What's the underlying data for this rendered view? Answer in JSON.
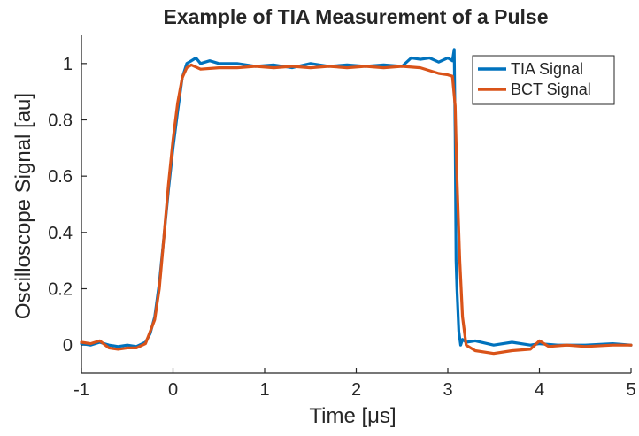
{
  "chart_data": {
    "type": "line",
    "title": "Example of TIA Measurement of a Pulse",
    "xlabel": "Time  [μs]",
    "ylabel": "Oscilloscope Signal [au]",
    "xlim": [
      -1,
      5
    ],
    "ylim": [
      -0.1,
      1.1
    ],
    "x_ticks": [
      "-1",
      "0",
      "1",
      "2",
      "3",
      "4",
      "5"
    ],
    "y_ticks": [
      "0",
      "0.2",
      "0.4",
      "0.6",
      "0.8",
      "1"
    ],
    "grid": false,
    "legend_position": "top-right",
    "series": [
      {
        "name": "TIA Signal",
        "color": "#0072bd",
        "x": [
          -1.0,
          -0.9,
          -0.8,
          -0.7,
          -0.6,
          -0.5,
          -0.4,
          -0.3,
          -0.25,
          -0.2,
          -0.15,
          -0.1,
          -0.05,
          0.0,
          0.05,
          0.1,
          0.15,
          0.2,
          0.25,
          0.3,
          0.4,
          0.5,
          0.7,
          0.9,
          1.1,
          1.3,
          1.5,
          1.7,
          1.9,
          2.1,
          2.3,
          2.5,
          2.6,
          2.7,
          2.8,
          2.9,
          3.0,
          3.05,
          3.07,
          3.08,
          3.09,
          3.1,
          3.12,
          3.14,
          3.16,
          3.2,
          3.3,
          3.5,
          3.7,
          3.9,
          4.0,
          4.2,
          4.5,
          4.8,
          5.0
        ],
        "y": [
          0.005,
          0.0,
          0.01,
          0.0,
          -0.005,
          0.0,
          -0.005,
          0.01,
          0.04,
          0.1,
          0.22,
          0.38,
          0.55,
          0.7,
          0.83,
          0.95,
          1.0,
          1.01,
          1.02,
          1.0,
          1.01,
          1.0,
          1.0,
          0.99,
          0.995,
          0.985,
          1.0,
          0.99,
          0.995,
          0.99,
          0.995,
          0.99,
          1.02,
          1.015,
          1.02,
          1.005,
          1.02,
          1.01,
          1.05,
          0.75,
          0.3,
          0.2,
          0.05,
          0.0,
          0.02,
          0.01,
          0.015,
          0.0,
          0.01,
          0.0,
          0.005,
          0.0,
          0.0,
          0.005,
          0.0
        ]
      },
      {
        "name": "BCT Signal",
        "color": "#d95319",
        "x": [
          -1.0,
          -0.9,
          -0.8,
          -0.7,
          -0.6,
          -0.5,
          -0.4,
          -0.3,
          -0.2,
          -0.15,
          -0.1,
          -0.05,
          0.0,
          0.05,
          0.1,
          0.15,
          0.2,
          0.3,
          0.5,
          0.7,
          0.9,
          1.1,
          1.3,
          1.5,
          1.7,
          1.9,
          2.1,
          2.3,
          2.5,
          2.7,
          2.9,
          3.0,
          3.05,
          3.08,
          3.1,
          3.13,
          3.16,
          3.2,
          3.3,
          3.5,
          3.7,
          3.9,
          4.0,
          4.1,
          4.3,
          4.5,
          4.8,
          5.0
        ],
        "y": [
          0.01,
          0.005,
          0.015,
          -0.01,
          -0.015,
          -0.01,
          -0.01,
          0.005,
          0.09,
          0.2,
          0.38,
          0.57,
          0.73,
          0.86,
          0.95,
          0.985,
          0.995,
          0.98,
          0.985,
          0.985,
          0.99,
          0.985,
          0.99,
          0.985,
          0.99,
          0.985,
          0.99,
          0.985,
          0.99,
          0.985,
          0.965,
          0.96,
          0.955,
          0.85,
          0.6,
          0.3,
          0.1,
          0.0,
          -0.02,
          -0.03,
          -0.02,
          -0.015,
          0.015,
          -0.005,
          0.0,
          -0.005,
          0.0,
          0.0
        ]
      }
    ]
  }
}
